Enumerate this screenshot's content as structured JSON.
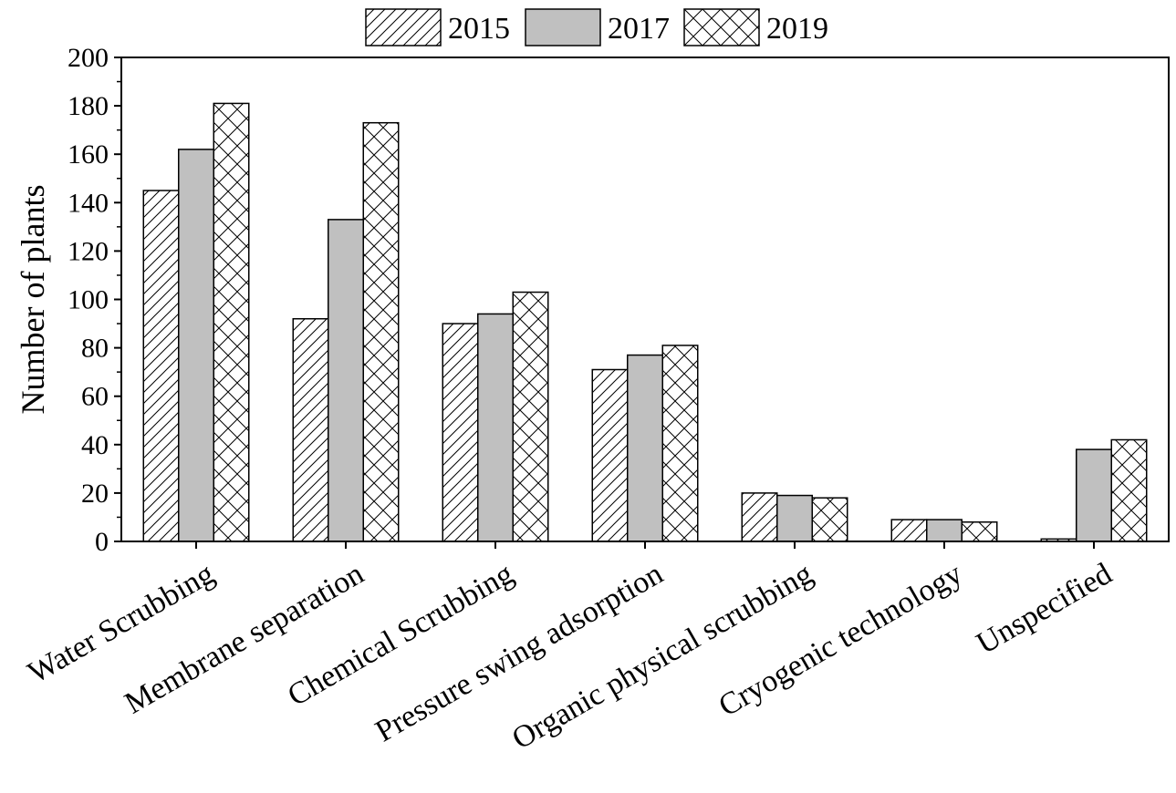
{
  "chart_data": {
    "type": "bar",
    "title": "",
    "xlabel": "",
    "ylabel": "Number of plants",
    "ylim": [
      0,
      200
    ],
    "yticks": [
      0,
      20,
      40,
      60,
      80,
      100,
      120,
      140,
      160,
      180,
      200
    ],
    "legend_position": "top-center",
    "grid": false,
    "categories": [
      "Water Scrubbing",
      "Membrane separation",
      "Chemical Scrubbing",
      "Pressure swing adsorption",
      "Organic physical scrubbing",
      "Cryogenic technology",
      "Unspecified"
    ],
    "series": [
      {
        "name": "2015",
        "pattern": "diagonal-hatch",
        "color": "#ffffff",
        "values": [
          145,
          92,
          90,
          71,
          20,
          9,
          1
        ]
      },
      {
        "name": "2017",
        "pattern": "solid",
        "color": "#c0c0c0",
        "values": [
          162,
          133,
          94,
          77,
          19,
          9,
          38
        ]
      },
      {
        "name": "2019",
        "pattern": "cross-hatch",
        "color": "#ffffff",
        "values": [
          181,
          173,
          103,
          81,
          18,
          8,
          42
        ]
      }
    ]
  }
}
